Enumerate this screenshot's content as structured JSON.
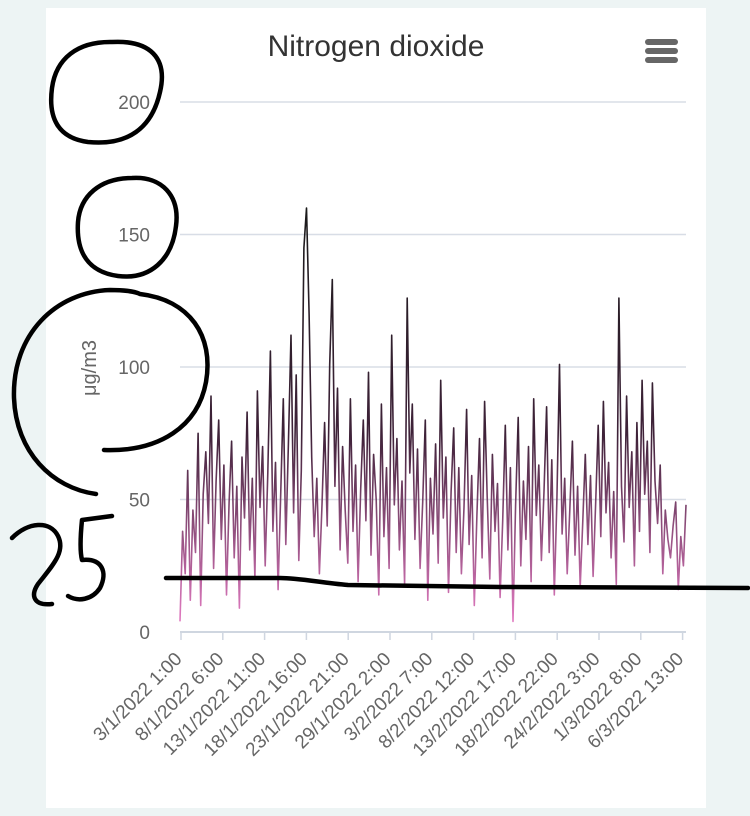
{
  "menu": {
    "icon": "hamburger-menu-icon"
  },
  "colors": {
    "background": "#edf4f4",
    "card": "#ffffff",
    "grid": "#d8dde6",
    "series_top": "#1a1a1a",
    "series_bottom": "#e07ac0",
    "annotation": "#000000"
  },
  "chart_data": {
    "type": "line",
    "title": "Nitrogen dioxide",
    "xlabel": "",
    "ylabel": "μg/m3",
    "ylim": [
      0,
      200
    ],
    "yticks": [
      0,
      50,
      100,
      150,
      200
    ],
    "x_tick_labels": [
      "3/1/2022 1:00",
      "8/1/2022 6:00",
      "13/1/2022 11:00",
      "18/1/2022 16:00",
      "23/1/2022 21:00",
      "29/1/2022 2:00",
      "3/2/2022 7:00",
      "8/2/2022 12:00",
      "13/2/2022 17:00",
      "18/2/2022 22:00",
      "24/2/2022 3:00",
      "1/3/2022 8:00",
      "6/3/2022 13:00"
    ],
    "grid": true,
    "legend": "none",
    "series": [
      {
        "values": [
          4,
          38,
          22,
          61,
          12,
          46,
          30,
          75,
          10,
          52,
          68,
          41,
          89,
          24,
          57,
          80,
          35,
          63,
          14,
          49,
          72,
          28,
          55,
          9,
          66,
          43,
          83,
          31,
          58,
          20,
          91,
          47,
          70,
          25,
          60,
          106,
          38,
          64,
          16,
          52,
          88,
          33,
          71,
          112,
          45,
          97,
          27,
          61,
          145,
          160,
          120,
          66,
          36,
          58,
          22,
          48,
          79,
          40,
          101,
          133,
          55,
          92,
          31,
          70,
          46,
          26,
          88,
          38,
          63,
          19,
          54,
          80,
          42,
          98,
          29,
          67,
          50,
          14,
          86,
          36,
          62,
          24,
          112,
          48,
          73,
          31,
          57,
          18,
          126,
          60,
          86,
          35,
          69,
          24,
          49,
          80,
          12,
          58,
          37,
          71,
          26,
          95,
          43,
          66,
          15,
          53,
          77,
          30,
          62,
          22,
          47,
          84,
          33,
          59,
          10,
          44,
          73,
          28,
          87,
          51,
          20,
          67,
          38,
          56,
          13,
          42,
          78,
          31,
          62,
          4,
          48,
          81,
          25,
          57,
          35,
          70,
          19,
          88,
          44,
          63,
          27,
          53,
          85,
          30,
          65,
          14,
          50,
          101,
          37,
          58,
          22,
          46,
          72,
          29,
          55,
          17,
          41,
          67,
          33,
          59,
          21,
          48,
          78,
          36,
          87,
          45,
          64,
          28,
          53,
          18,
          126,
          55,
          34,
          89,
          47,
          68,
          25,
          79,
          38,
          95,
          52,
          72,
          30,
          94,
          57,
          41,
          63,
          22,
          46,
          35,
          28,
          40,
          49,
          16,
          36,
          25,
          48
        ]
      },
      {
        "name": "",
        "values": [
          22,
          22,
          22,
          21,
          20,
          19,
          18.5,
          18,
          18,
          18,
          18,
          18,
          18
        ]
      }
    ]
  }
}
